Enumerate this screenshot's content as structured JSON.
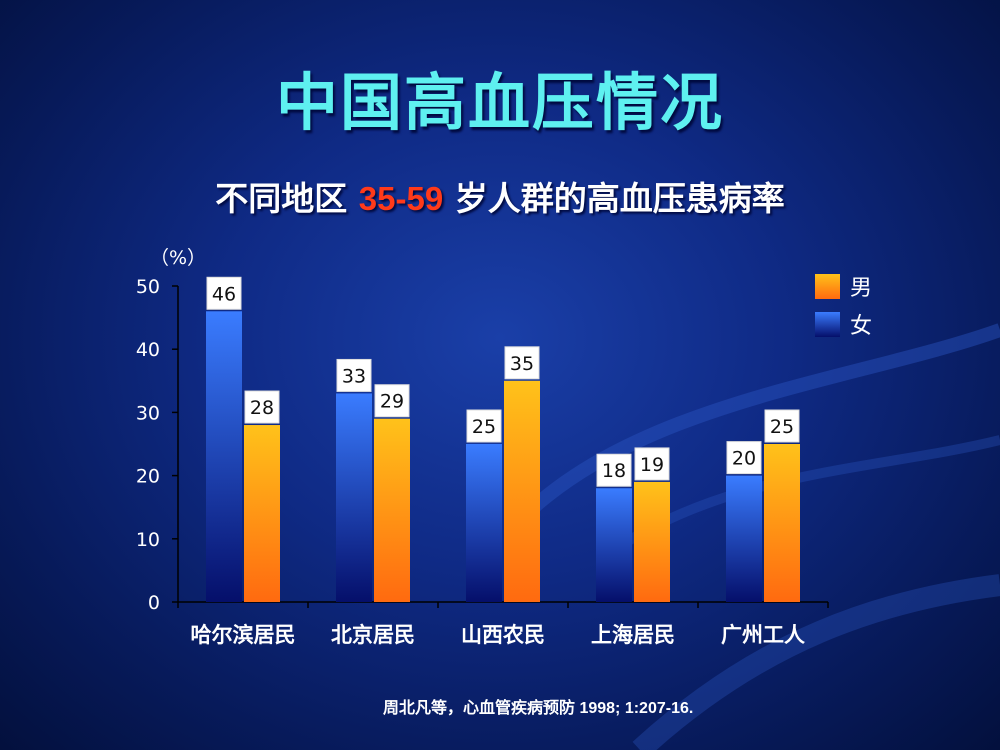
{
  "title": "中国高血压情况",
  "subtitle": {
    "prefix": "不同地区 ",
    "highlight": "35-59",
    "suffix": " 岁人群的高血压患病率"
  },
  "citation": "周北凡等，心血管疾病预防   1998; 1:207-16.",
  "colors": {
    "title": "#5ef0f0",
    "highlight": "#ff3a1a",
    "male_top": "#ffc21a",
    "male_bottom": "#ff6a10",
    "female_top": "#3a7cff",
    "female_bottom": "#050f6a"
  },
  "chart_data": {
    "type": "bar",
    "title": "",
    "xlabel": "",
    "ylabel": "（%）",
    "ylim": [
      0,
      50
    ],
    "yticks": [
      0,
      10,
      20,
      30,
      40,
      50
    ],
    "categories": [
      "哈尔滨居民",
      "北京居民",
      "山西农民",
      "上海居民",
      "广州工人"
    ],
    "series": [
      {
        "name": "女",
        "values": [
          46,
          33,
          25,
          18,
          20
        ]
      },
      {
        "name": "男",
        "values": [
          28,
          29,
          35,
          19,
          25
        ]
      }
    ],
    "legend_order": [
      "男",
      "女"
    ],
    "legend_position": "top-right",
    "grid": false
  }
}
